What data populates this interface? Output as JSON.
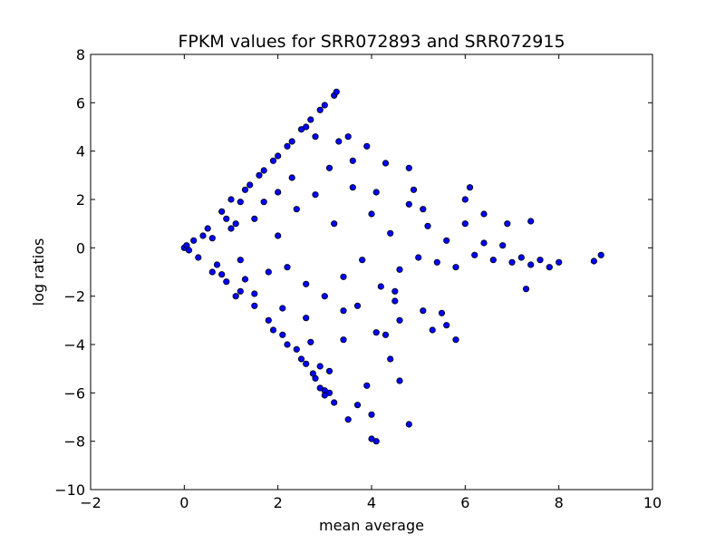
{
  "chart_data": {
    "type": "scatter",
    "title": "FPKM values for SRR072893 and SRR072915",
    "xlabel": "mean average",
    "ylabel": "log ratios",
    "xlim": [
      -2,
      10
    ],
    "ylim": [
      -10,
      8
    ],
    "xticks": [
      -2,
      0,
      2,
      4,
      6,
      8,
      10
    ],
    "yticks": [
      -10,
      -8,
      -6,
      -4,
      -2,
      0,
      2,
      4,
      6,
      8
    ],
    "xtick_labels": [
      "−2",
      "0",
      "2",
      "4",
      "6",
      "8",
      "10"
    ],
    "ytick_labels": [
      "−10",
      "−8",
      "−6",
      "−4",
      "−2",
      "0",
      "2",
      "4",
      "6",
      "8"
    ],
    "grid": false,
    "marker_color": "#0000ff",
    "marker_edge_color": "#000000",
    "series": [
      {
        "points": [
          [
            0.0,
            0.0
          ],
          [
            0.05,
            0.1
          ],
          [
            0.1,
            -0.1
          ],
          [
            0.2,
            0.3
          ],
          [
            0.3,
            -0.4
          ],
          [
            0.5,
            0.8
          ],
          [
            0.6,
            -1.0
          ],
          [
            0.8,
            1.5
          ],
          [
            0.9,
            -1.4
          ],
          [
            1.0,
            2.0
          ],
          [
            1.2,
            -1.8
          ],
          [
            1.4,
            2.6
          ],
          [
            1.5,
            -2.4
          ],
          [
            1.7,
            3.2
          ],
          [
            1.8,
            -3.0
          ],
          [
            2.0,
            3.8
          ],
          [
            2.1,
            -3.6
          ],
          [
            2.3,
            4.4
          ],
          [
            2.4,
            -4.2
          ],
          [
            2.5,
            4.9
          ],
          [
            2.6,
            -4.8
          ],
          [
            2.7,
            5.3
          ],
          [
            2.8,
            -5.4
          ],
          [
            2.9,
            -5.8
          ],
          [
            3.0,
            5.9
          ],
          [
            3.2,
            6.3
          ],
          [
            3.25,
            6.45
          ],
          [
            3.1,
            -6.0
          ],
          [
            2.9,
            5.7
          ],
          [
            2.6,
            5.0
          ],
          [
            2.2,
            4.2
          ],
          [
            1.9,
            3.6
          ],
          [
            1.6,
            3.0
          ],
          [
            1.3,
            2.4
          ],
          [
            1.1,
            -2.0
          ],
          [
            1.9,
            -3.4
          ],
          [
            2.2,
            -4.0
          ],
          [
            2.5,
            -4.6
          ],
          [
            2.75,
            -5.2
          ],
          [
            3.0,
            -5.9
          ],
          [
            0.4,
            0.5
          ],
          [
            0.7,
            -0.7
          ],
          [
            1.0,
            0.8
          ],
          [
            1.2,
            -0.5
          ],
          [
            1.5,
            1.2
          ],
          [
            1.8,
            -1.0
          ],
          [
            2.0,
            0.5
          ],
          [
            2.2,
            -0.8
          ],
          [
            2.4,
            1.6
          ],
          [
            2.6,
            -1.5
          ],
          [
            2.8,
            2.2
          ],
          [
            3.0,
            -2.0
          ],
          [
            3.2,
            1.0
          ],
          [
            3.4,
            -1.2
          ],
          [
            3.6,
            2.5
          ],
          [
            3.8,
            -0.5
          ],
          [
            4.0,
            1.4
          ],
          [
            4.2,
            -1.6
          ],
          [
            4.4,
            0.6
          ],
          [
            4.6,
            -0.9
          ],
          [
            4.8,
            1.8
          ],
          [
            5.0,
            -0.4
          ],
          [
            5.2,
            0.9
          ],
          [
            5.4,
            -0.6
          ],
          [
            5.6,
            0.3
          ],
          [
            5.8,
            -0.8
          ],
          [
            6.0,
            1.0
          ],
          [
            6.2,
            -0.3
          ],
          [
            6.4,
            0.2
          ],
          [
            6.6,
            -0.5
          ],
          [
            6.8,
            0.1
          ],
          [
            7.0,
            -0.6
          ],
          [
            7.2,
            -0.4
          ],
          [
            7.4,
            -0.7
          ],
          [
            7.6,
            -0.5
          ],
          [
            7.8,
            -0.8
          ],
          [
            8.0,
            -0.6
          ],
          [
            8.75,
            -0.55
          ],
          [
            8.9,
            -0.3
          ],
          [
            7.3,
            -1.7
          ],
          [
            6.1,
            2.5
          ],
          [
            6.0,
            2.0
          ],
          [
            6.4,
            1.4
          ],
          [
            6.9,
            1.0
          ],
          [
            7.4,
            1.1
          ],
          [
            5.8,
            -3.8
          ],
          [
            5.6,
            -3.2
          ],
          [
            5.1,
            -2.6
          ],
          [
            4.5,
            -1.8
          ],
          [
            4.3,
            3.5
          ],
          [
            4.8,
            3.3
          ],
          [
            3.5,
            4.6
          ],
          [
            3.3,
            4.4
          ],
          [
            3.9,
            4.2
          ],
          [
            2.8,
            4.6
          ],
          [
            4.8,
            -7.3
          ],
          [
            4.1,
            -8.0
          ],
          [
            4.0,
            -7.9
          ],
          [
            3.5,
            -7.1
          ],
          [
            4.0,
            -6.9
          ],
          [
            3.7,
            -6.5
          ],
          [
            3.2,
            -6.4
          ],
          [
            3.0,
            -6.1
          ],
          [
            3.9,
            -5.7
          ],
          [
            4.6,
            -5.5
          ],
          [
            3.1,
            -5.1
          ],
          [
            4.4,
            -4.6
          ],
          [
            4.1,
            -3.5
          ],
          [
            4.3,
            -3.6
          ],
          [
            3.4,
            -3.8
          ],
          [
            2.9,
            -4.9
          ],
          [
            2.7,
            -3.9
          ],
          [
            5.3,
            -3.4
          ],
          [
            5.5,
            -2.7
          ],
          [
            4.6,
            -3.0
          ],
          [
            1.2,
            1.9
          ],
          [
            1.5,
            -1.9
          ],
          [
            2.3,
            2.9
          ],
          [
            2.6,
            -2.9
          ],
          [
            3.1,
            3.3
          ],
          [
            3.4,
            -2.6
          ],
          [
            4.1,
            2.3
          ],
          [
            4.5,
            -2.2
          ],
          [
            4.9,
            2.4
          ],
          [
            5.1,
            1.6
          ],
          [
            3.6,
            3.6
          ],
          [
            3.7,
            -2.4
          ],
          [
            2.0,
            2.3
          ],
          [
            2.1,
            -2.5
          ],
          [
            1.7,
            1.9
          ],
          [
            0.9,
            1.2
          ],
          [
            0.8,
            -1.1
          ],
          [
            0.6,
            0.4
          ],
          [
            1.1,
            1.0
          ],
          [
            1.3,
            -1.3
          ]
        ]
      }
    ]
  }
}
